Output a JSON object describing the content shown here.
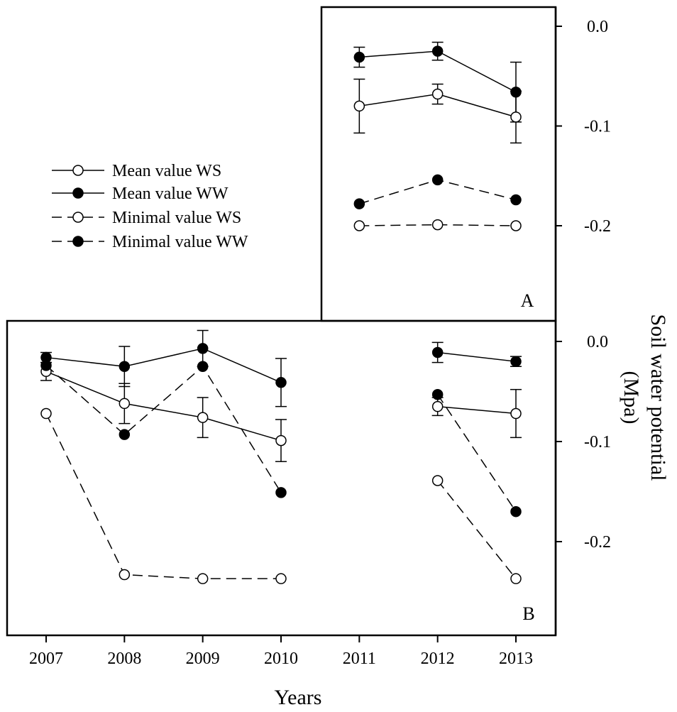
{
  "chart_data": [
    {
      "panel_label": "A",
      "type": "line",
      "x": [
        2011,
        2012,
        2013
      ],
      "ylim": [
        -0.28,
        0.02
      ],
      "yticks": [
        "0.0",
        "-0.1",
        "-0.2"
      ],
      "series": [
        {
          "name": "Mean value WS",
          "style": "solid",
          "marker": "open",
          "values": [
            -0.08,
            -0.068,
            -0.091
          ],
          "errors": [
            0.027,
            0.01,
            0.026
          ]
        },
        {
          "name": "Mean value WW",
          "style": "solid",
          "marker": "filled",
          "values": [
            -0.031,
            -0.025,
            -0.066
          ],
          "errors": [
            0.01,
            0.009,
            0.03
          ]
        },
        {
          "name": "Minimal value WS",
          "style": "dashed",
          "marker": "open",
          "values": [
            -0.2,
            -0.199,
            -0.2
          ]
        },
        {
          "name": "Minimal value WW",
          "style": "dashed",
          "marker": "filled",
          "values": [
            -0.178,
            -0.154,
            -0.174
          ]
        }
      ]
    },
    {
      "panel_label": "B",
      "type": "line",
      "x": [
        2007,
        2008,
        2009,
        2010,
        2011,
        2012,
        2013
      ],
      "ylim": [
        -0.29,
        0.02
      ],
      "yticks": [
        "0.0",
        "-0.1",
        "-0.2"
      ],
      "series": [
        {
          "name": "Mean value WS",
          "style": "solid",
          "marker": "open",
          "values": [
            -0.03,
            -0.062,
            -0.076,
            -0.099,
            null,
            -0.065,
            -0.072
          ],
          "errors": [
            0.009,
            0.02,
            0.02,
            0.021,
            null,
            0.009,
            0.024
          ]
        },
        {
          "name": "Mean value WW",
          "style": "solid",
          "marker": "filled",
          "values": [
            -0.016,
            -0.025,
            -0.007,
            -0.041,
            null,
            -0.011,
            -0.02
          ],
          "errors": [
            0.005,
            0.02,
            0.018,
            0.024,
            null,
            0.01,
            0.005
          ]
        },
        {
          "name": "Minimal value WS",
          "style": "dashed",
          "marker": "open",
          "values": [
            -0.072,
            -0.233,
            -0.237,
            -0.237,
            null,
            -0.139,
            -0.237
          ]
        },
        {
          "name": "Minimal value WW",
          "style": "dashed",
          "marker": "filled",
          "values": [
            -0.024,
            -0.093,
            -0.025,
            -0.151,
            null,
            -0.053,
            -0.17
          ]
        }
      ]
    }
  ],
  "x_tick_labels": [
    "2007",
    "2008",
    "2009",
    "2010",
    "2011",
    "2012",
    "2013"
  ],
  "xlabel": "Years",
  "ylabel_line1": "Soil water potential",
  "ylabel_line2": "(Mpa)",
  "legend": [
    {
      "label": "Mean value WS",
      "style": "solid",
      "marker": "open"
    },
    {
      "label": "Mean value WW",
      "style": "solid",
      "marker": "filled"
    },
    {
      "label": "Minimal value WS",
      "style": "dashed",
      "marker": "open"
    },
    {
      "label": "Minimal value WW",
      "style": "dashed",
      "marker": "filled"
    }
  ]
}
